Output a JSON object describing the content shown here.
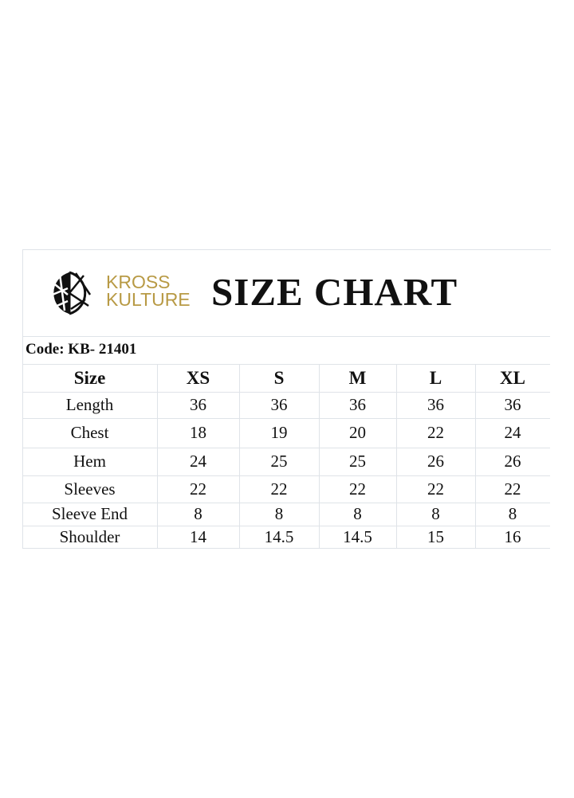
{
  "brand": {
    "line1": "KROSS",
    "line2": "KULTURE",
    "color": "#b89a45"
  },
  "title": "SIZE CHART",
  "code": "Code: KB- 21401",
  "table": {
    "headers": [
      "Size",
      "XS",
      "S",
      "M",
      "L",
      "XL"
    ],
    "rows": [
      [
        "Length",
        "36",
        "36",
        "36",
        "36",
        "36"
      ],
      [
        "Chest",
        "18",
        "19",
        "20",
        "22",
        "24"
      ],
      [
        "Hem",
        "24",
        "25",
        "25",
        "26",
        "26"
      ],
      [
        "Sleeves",
        "22",
        "22",
        "22",
        "22",
        "22"
      ],
      [
        "Sleeve End",
        "8",
        "8",
        "8",
        "8",
        "8"
      ],
      [
        "Shoulder",
        "14",
        "14.5",
        "14.5",
        "15",
        "16"
      ]
    ]
  }
}
